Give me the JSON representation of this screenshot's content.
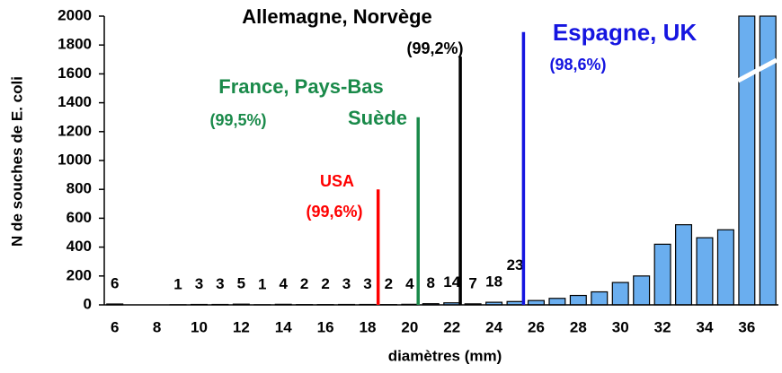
{
  "chart_data": {
    "type": "bar",
    "x_label": "diamètres (mm)",
    "y_label": "N de souches de E. coli",
    "categories": [
      6,
      null,
      8,
      null,
      10,
      null,
      12,
      null,
      14,
      null,
      16,
      null,
      18,
      null,
      20,
      null,
      22,
      null,
      24,
      null,
      26,
      null,
      28,
      null,
      30,
      null,
      32,
      null,
      34,
      null,
      36,
      null
    ],
    "values": [
      6,
      0,
      0,
      1,
      3,
      3,
      5,
      1,
      4,
      2,
      2,
      3,
      3,
      2,
      4,
      8,
      14,
      7,
      18,
      23,
      30,
      45,
      65,
      90,
      155,
      200,
      420,
      555,
      465,
      520,
      2000,
      2000
    ],
    "value_labels": [
      "6",
      null,
      null,
      "1",
      "3",
      "3",
      "5",
      "1",
      "4",
      "2",
      "2",
      "3",
      "3",
      "2",
      "4",
      "8",
      "14",
      "7",
      "18",
      "23",
      null,
      null,
      null,
      null,
      null,
      null,
      null,
      null,
      null,
      null,
      null,
      null
    ],
    "color": "#6aaeef",
    "ylim": [
      0,
      2000
    ],
    "yticks": [
      0,
      200,
      400,
      600,
      800,
      1000,
      1200,
      1400,
      1600,
      1800,
      2000
    ],
    "annotations": [
      {
        "label": "USA",
        "sublabel": "(99,6%)",
        "x": 18.5,
        "y": 800,
        "color": "#ff0000"
      },
      {
        "label": "France, Pays-Bas",
        "sublabel": "(99,5%)",
        "label2": "Suède",
        "x": 20.4,
        "y": 1300,
        "color": "#1a8a4a"
      },
      {
        "label": "Allemagne, Norvège",
        "sublabel": "(99,2%)",
        "x": 22.4,
        "y": 1720,
        "color": "#000000"
      },
      {
        "label": "Espagne, UK",
        "sublabel": "(98,6%)",
        "x": 25.4,
        "y": 1890,
        "color": "#1515e0"
      }
    ]
  }
}
